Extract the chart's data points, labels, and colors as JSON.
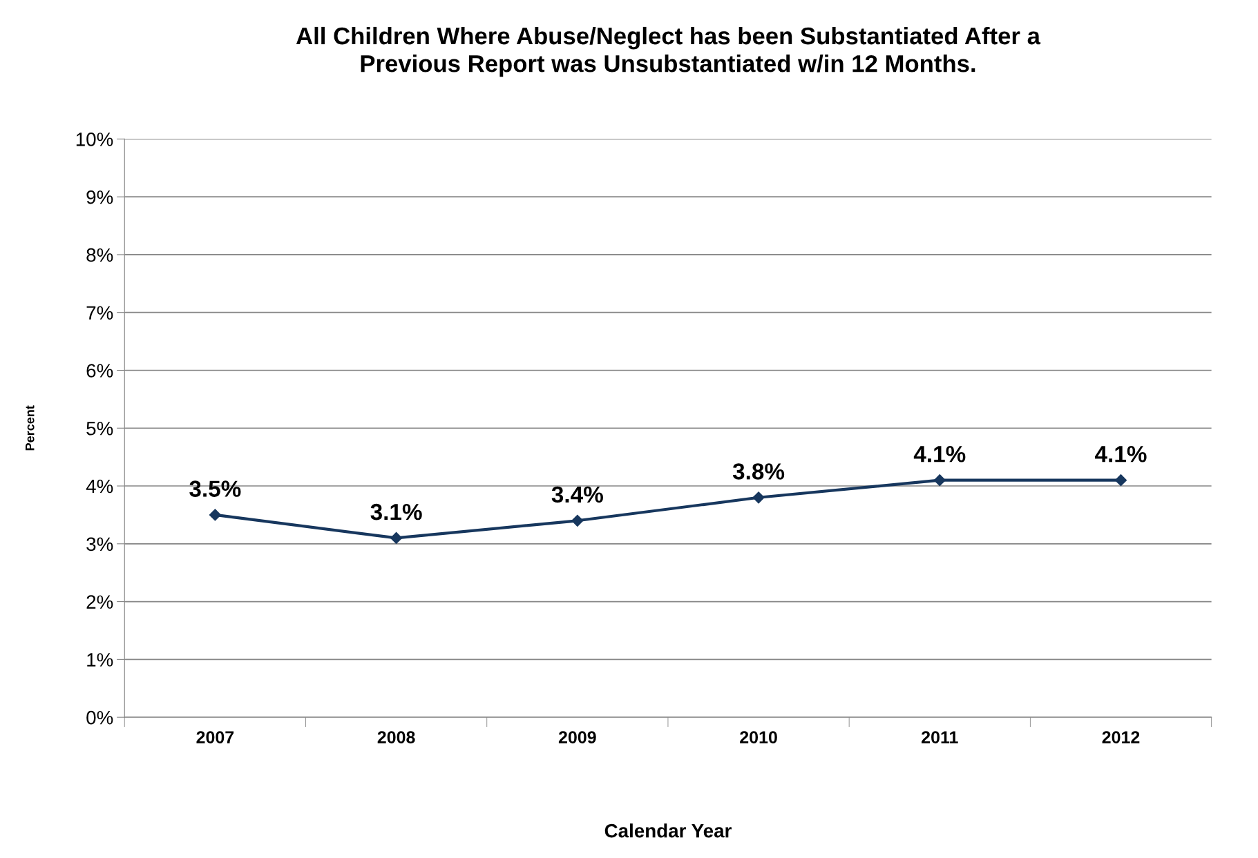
{
  "chart_data": {
    "type": "line",
    "title": "All Children Where Abuse/Neglect has been Substantiated After a\nPrevious Report was Unsubstantiated w/in 12 Months.",
    "xlabel": "Calendar Year",
    "ylabel": "Percent",
    "categories": [
      "2007",
      "2008",
      "2009",
      "2010",
      "2011",
      "2012"
    ],
    "series": [
      {
        "color": "#17375e",
        "values": [
          3.5,
          3.1,
          3.4,
          3.8,
          4.1,
          4.1
        ],
        "value_labels": [
          "3.5%",
          "3.1%",
          "3.4%",
          "3.8%",
          "4.1%",
          "4.1%"
        ]
      }
    ],
    "ylim": [
      0,
      10
    ],
    "yticks": [
      {
        "value": 0,
        "label": "0%"
      },
      {
        "value": 1,
        "label": "1%"
      },
      {
        "value": 2,
        "label": "2%"
      },
      {
        "value": 3,
        "label": "3%"
      },
      {
        "value": 4,
        "label": "4%"
      },
      {
        "value": 5,
        "label": "5%"
      },
      {
        "value": 6,
        "label": "6%"
      },
      {
        "value": 7,
        "label": "7%"
      },
      {
        "value": 8,
        "label": "8%"
      },
      {
        "value": 9,
        "label": "9%"
      },
      {
        "value": 10,
        "label": "10%"
      }
    ],
    "grid": "y",
    "marker": "diamond",
    "line_style": "solid"
  }
}
